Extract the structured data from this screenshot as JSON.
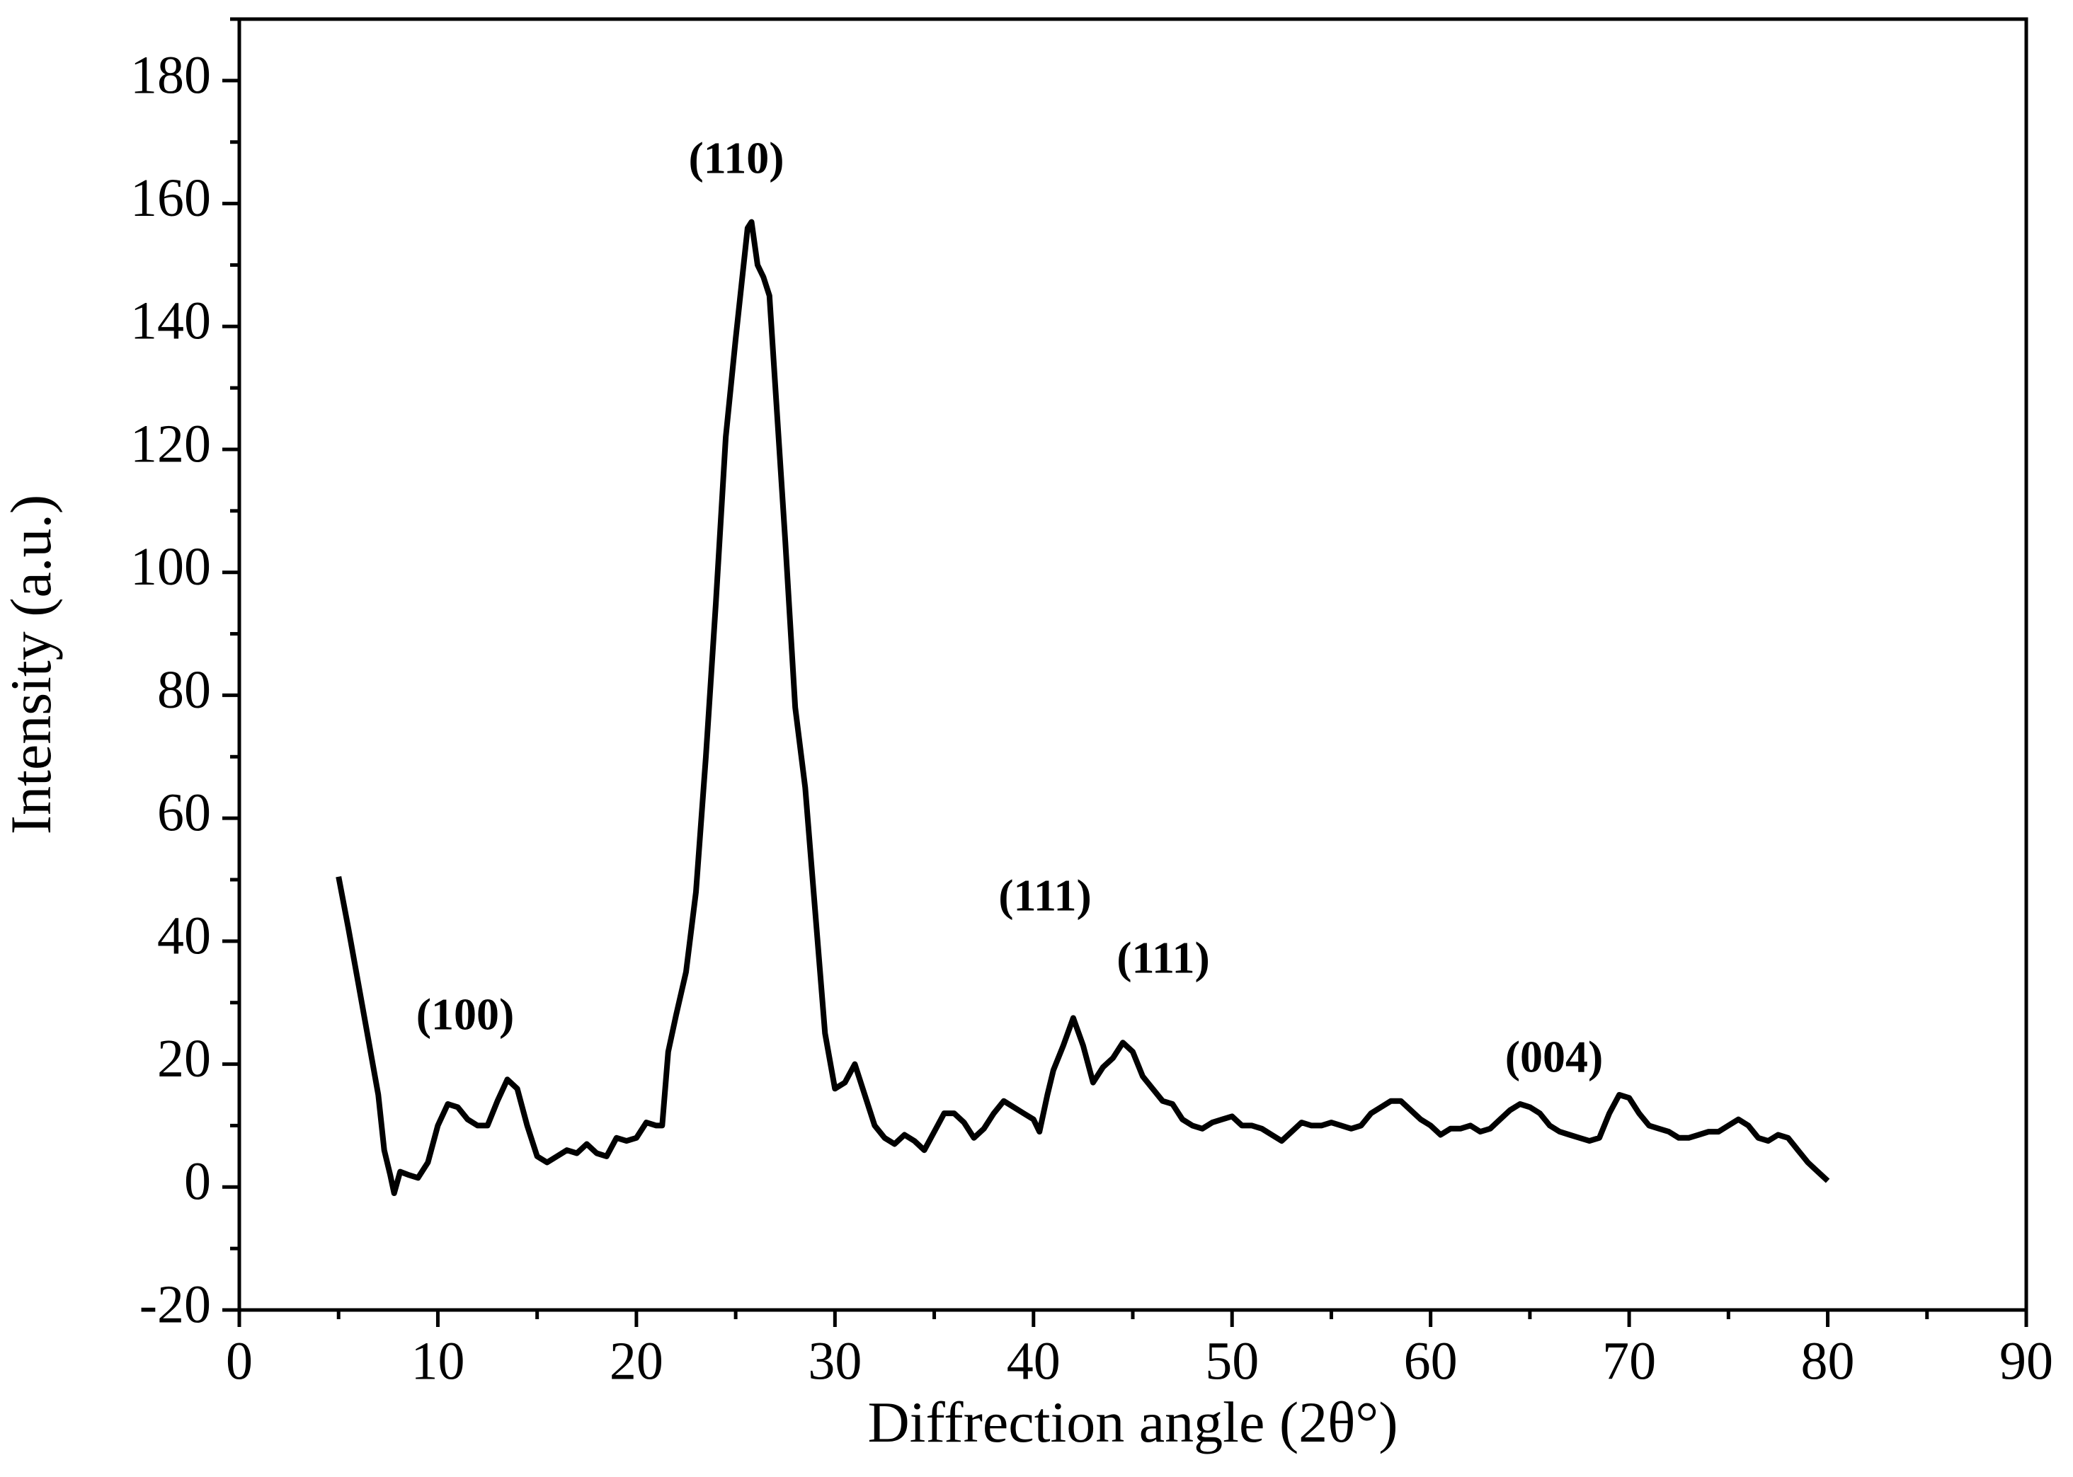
{
  "chart_data": {
    "type": "line",
    "xlabel": "Diffrection angle (2θ°)",
    "ylabel": "Intensity (a.u.)",
    "xlim": [
      0,
      90
    ],
    "ylim": [
      -20,
      190
    ],
    "xticks": [
      0,
      10,
      20,
      30,
      40,
      50,
      60,
      70,
      80,
      90
    ],
    "yticks": [
      -20,
      0,
      20,
      40,
      60,
      80,
      100,
      120,
      140,
      160,
      180
    ],
    "color": "#000000",
    "annotations": [
      "(100)",
      "(110)",
      "(111)",
      "(111)",
      "(004)"
    ],
    "x": [
      5,
      5.5,
      6,
      6.5,
      7,
      7.3,
      7.6,
      7.8,
      8.1,
      8.5,
      9,
      9.5,
      10,
      10.5,
      11,
      11.5,
      12,
      12.5,
      13,
      13.5,
      14,
      14.5,
      15,
      15.5,
      16,
      16.5,
      17,
      17.5,
      18,
      18.5,
      19,
      19.5,
      20,
      20.5,
      21,
      21.3,
      21.6,
      22,
      22.5,
      23,
      23.5,
      24,
      24.5,
      25,
      25.3,
      25.6,
      25.8,
      26.1,
      26.4,
      26.7,
      27,
      27.5,
      28,
      28.5,
      29,
      29.5,
      30,
      30.5,
      31,
      31.5,
      32,
      32.5,
      33,
      33.5,
      34,
      34.5,
      35,
      35.5,
      36,
      36.5,
      37,
      37.5,
      38,
      38.5,
      39,
      39.5,
      40,
      40.3,
      40.7,
      41,
      41.5,
      42,
      42.5,
      43,
      43.5,
      44,
      44.5,
      45,
      45.5,
      46,
      46.5,
      47,
      47.5,
      48,
      48.5,
      49,
      49.5,
      50,
      50.5,
      51,
      51.5,
      52,
      52.5,
      53,
      53.5,
      54,
      54.5,
      55,
      55.5,
      56,
      56.5,
      57,
      57.5,
      58,
      58.5,
      59,
      59.5,
      60,
      60.5,
      61,
      61.5,
      62,
      62.5,
      63,
      63.5,
      64,
      64.5,
      65,
      65.5,
      66,
      66.5,
      67,
      67.5,
      68,
      68.5,
      69,
      69.5,
      70,
      70.5,
      71,
      71.5,
      72,
      72.5,
      73,
      73.5,
      74,
      74.5,
      75,
      75.5,
      76,
      76.5,
      77,
      77.5,
      78,
      78.5,
      79,
      79.5,
      80
    ],
    "values": [
      50.5,
      42,
      33,
      24,
      15,
      6,
      2,
      -1,
      2.5,
      2,
      1.5,
      4,
      10,
      13.5,
      13,
      11,
      10,
      10,
      14,
      17.5,
      16,
      10,
      5,
      4,
      5,
      6,
      5.5,
      7,
      5.5,
      5,
      8,
      7.5,
      8,
      10.5,
      10,
      10,
      22,
      28,
      35,
      48,
      70,
      95,
      122,
      138,
      147,
      156,
      157,
      150,
      148,
      145,
      130,
      105,
      78,
      65,
      45,
      25,
      16,
      17,
      20,
      15,
      10,
      8,
      7,
      8.5,
      7.5,
      6,
      9,
      12,
      12,
      10.5,
      8,
      9.5,
      12,
      14,
      13,
      12,
      11,
      9,
      15,
      19,
      23,
      27.5,
      23,
      17,
      19.5,
      21,
      23.5,
      22,
      18,
      16,
      14,
      13.5,
      11,
      10,
      9.5,
      10.5,
      11,
      11.5,
      10,
      10,
      9.5,
      8.5,
      7.5,
      9,
      10.5,
      10,
      10,
      10.5,
      10,
      9.5,
      10,
      12,
      13,
      14,
      14,
      12.5,
      11,
      10,
      8.5,
      9.5,
      9.5,
      10,
      9,
      9.5,
      11,
      12.5,
      13.5,
      13,
      12,
      10,
      9,
      8.5,
      8,
      7.5,
      8,
      12,
      15,
      14.5,
      12,
      10,
      9.5,
      9,
      8,
      8,
      8.5,
      9,
      9,
      10,
      11,
      10,
      8,
      7.5,
      8.5,
      8,
      6,
      4,
      2.5,
      1
    ]
  }
}
